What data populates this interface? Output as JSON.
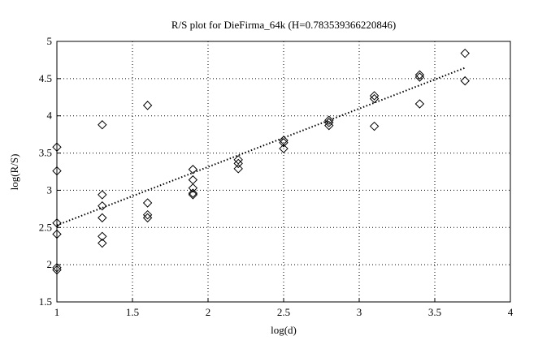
{
  "chart_data": {
    "type": "scatter",
    "title": "R/S plot for DieFirma_64k (H=0.783539366220846)",
    "x_label": "log(d)",
    "y_label": "log(R/S)",
    "xlim": [
      1,
      4
    ],
    "ylim": [
      1.5,
      5
    ],
    "xticks": [
      1,
      1.5,
      2,
      2.5,
      3,
      3.5,
      4
    ],
    "yticks": [
      1.5,
      2,
      2.5,
      3,
      3.5,
      4,
      4.5,
      5
    ],
    "grid": true,
    "series": [
      {
        "color": "#000000",
        "marker": "diamond",
        "x": [
          1,
          1,
          1,
          1,
          1,
          1,
          1.3,
          1.3,
          1.3,
          1.3,
          1.3,
          1.3,
          1.6,
          1.6,
          1.6,
          1.6,
          1.9,
          1.9,
          1.9,
          1.9,
          1.9,
          2.2,
          2.2,
          2.2,
          2.5,
          2.5,
          2.5,
          2.8,
          2.8,
          2.8,
          3.1,
          3.1,
          3.1,
          3.4,
          3.4,
          3.4,
          3.7,
          3.7
        ],
        "values": [
          3.58,
          3.26,
          2.56,
          2.41,
          1.96,
          1.93,
          3.88,
          2.94,
          2.79,
          2.63,
          2.38,
          2.29,
          4.14,
          2.83,
          2.67,
          2.63,
          3.28,
          3.14,
          3.03,
          2.96,
          2.94,
          3.41,
          3.36,
          3.29,
          3.67,
          3.64,
          3.56,
          3.94,
          3.91,
          3.87,
          4.27,
          4.23,
          3.86,
          4.55,
          4.52,
          4.16,
          4.84,
          4.47
        ]
      },
      {
        "color": "#000000",
        "type": "line",
        "dash": "dotted",
        "x": [
          1,
          3.7
        ],
        "values": [
          2.53,
          4.645
        ]
      }
    ]
  }
}
